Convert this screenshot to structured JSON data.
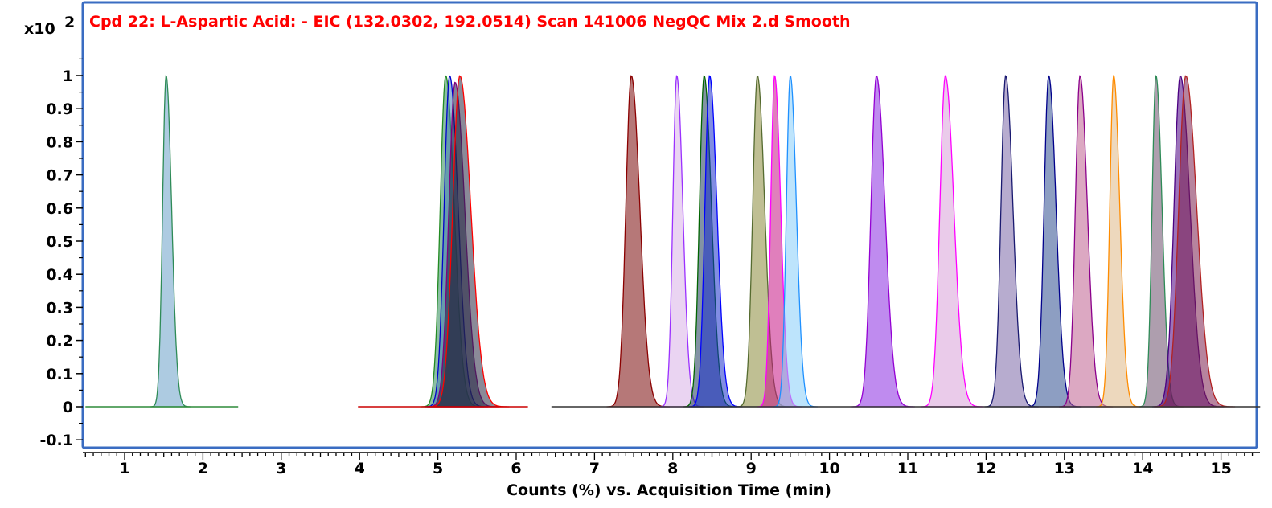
{
  "chart_data": {
    "type": "area",
    "title": "Cpd 22: L-Aspartic Acid: - EIC (132.0302, 192.0514) Scan 141006 NegQC Mix 2.d Smooth",
    "title_color": "#ff0000",
    "xlabel": "Counts (%) vs. Acquisition Time (min)",
    "ylabel": "",
    "y_scale_label": "x10",
    "y_scale_exponent": "2",
    "xlim": [
      0.5,
      15.5
    ],
    "ylim": [
      -0.14,
      1.12
    ],
    "x_ticks": [
      1,
      2,
      3,
      4,
      5,
      6,
      7,
      8,
      9,
      10,
      11,
      12,
      13,
      14,
      15
    ],
    "y_ticks": [
      -0.1,
      0,
      0.1,
      0.2,
      0.3,
      0.4,
      0.5,
      0.6,
      0.7,
      0.8,
      0.9,
      1
    ],
    "y_tick_labels": [
      "-0.1",
      "0",
      "0.1",
      "0.2",
      "0.3",
      "0.4",
      "0.5",
      "0.6",
      "0.7",
      "0.8",
      "0.9",
      "1"
    ],
    "grid": false,
    "frame_color": "#3a6cc2",
    "baseline_segments": [
      {
        "x": [
          0.5,
          2.45
        ],
        "color": "#2e8b3a"
      },
      {
        "x": [
          3.98,
          6.15
        ],
        "color": "#cc0000"
      },
      {
        "x": [
          6.45,
          15.5
        ],
        "color": "#333333"
      }
    ],
    "peaks": [
      {
        "rt": 1.53,
        "height": 1.0,
        "width": 0.045,
        "color": "#2e8b57",
        "fill": "#6aa0c8"
      },
      {
        "rt": 5.1,
        "height": 1.0,
        "width": 0.07,
        "color": "#228b22",
        "fill": "#2e8b57"
      },
      {
        "rt": 5.15,
        "height": 1.0,
        "width": 0.07,
        "color": "#0000cd",
        "fill": "#4682b4"
      },
      {
        "rt": 5.22,
        "height": 0.98,
        "width": 0.08,
        "color": "#800080",
        "fill": "#1c1c3c"
      },
      {
        "rt": 5.28,
        "height": 1.0,
        "width": 0.09,
        "color": "#ff0000",
        "fill": "#2a2a44"
      },
      {
        "rt": 7.47,
        "height": 1.0,
        "width": 0.07,
        "color": "#8b0000",
        "fill": "#7a0a0a"
      },
      {
        "rt": 8.05,
        "height": 1.0,
        "width": 0.05,
        "color": "#9b30ff",
        "fill": "#d8b0e8"
      },
      {
        "rt": 8.4,
        "height": 1.0,
        "width": 0.06,
        "color": "#006400",
        "fill": "#1e3a5a"
      },
      {
        "rt": 8.47,
        "height": 1.0,
        "width": 0.06,
        "color": "#0000ff",
        "fill": "#1a2fcc"
      },
      {
        "rt": 9.08,
        "height": 1.0,
        "width": 0.06,
        "color": "#556b2f",
        "fill": "#8b8b3a"
      },
      {
        "rt": 9.3,
        "height": 1.0,
        "width": 0.05,
        "color": "#ff00ff",
        "fill": "#c71585"
      },
      {
        "rt": 9.5,
        "height": 1.0,
        "width": 0.05,
        "color": "#1e90ff",
        "fill": "#87cefa"
      },
      {
        "rt": 10.6,
        "height": 1.0,
        "width": 0.07,
        "color": "#9400d3",
        "fill": "#8a2be2"
      },
      {
        "rt": 11.48,
        "height": 1.0,
        "width": 0.07,
        "color": "#ff00ff",
        "fill": "#d8a0d8"
      },
      {
        "rt": 12.25,
        "height": 1.0,
        "width": 0.06,
        "color": "#191970",
        "fill": "#7b68a8"
      },
      {
        "rt": 12.8,
        "height": 1.0,
        "width": 0.06,
        "color": "#00008b",
        "fill": "#2f4f8f"
      },
      {
        "rt": 13.2,
        "height": 1.0,
        "width": 0.06,
        "color": "#8b008b",
        "fill": "#c06090"
      },
      {
        "rt": 13.63,
        "height": 1.0,
        "width": 0.05,
        "color": "#ff8c00",
        "fill": "#deb887"
      },
      {
        "rt": 14.17,
        "height": 1.0,
        "width": 0.05,
        "color": "#2e8b57",
        "fill": "#6b4f6b"
      },
      {
        "rt": 14.48,
        "height": 1.0,
        "width": 0.08,
        "color": "#4b0082",
        "fill": "#4b0082"
      },
      {
        "rt": 14.55,
        "height": 1.0,
        "width": 0.09,
        "color": "#b22222",
        "fill": "#7b1f4f"
      }
    ]
  }
}
